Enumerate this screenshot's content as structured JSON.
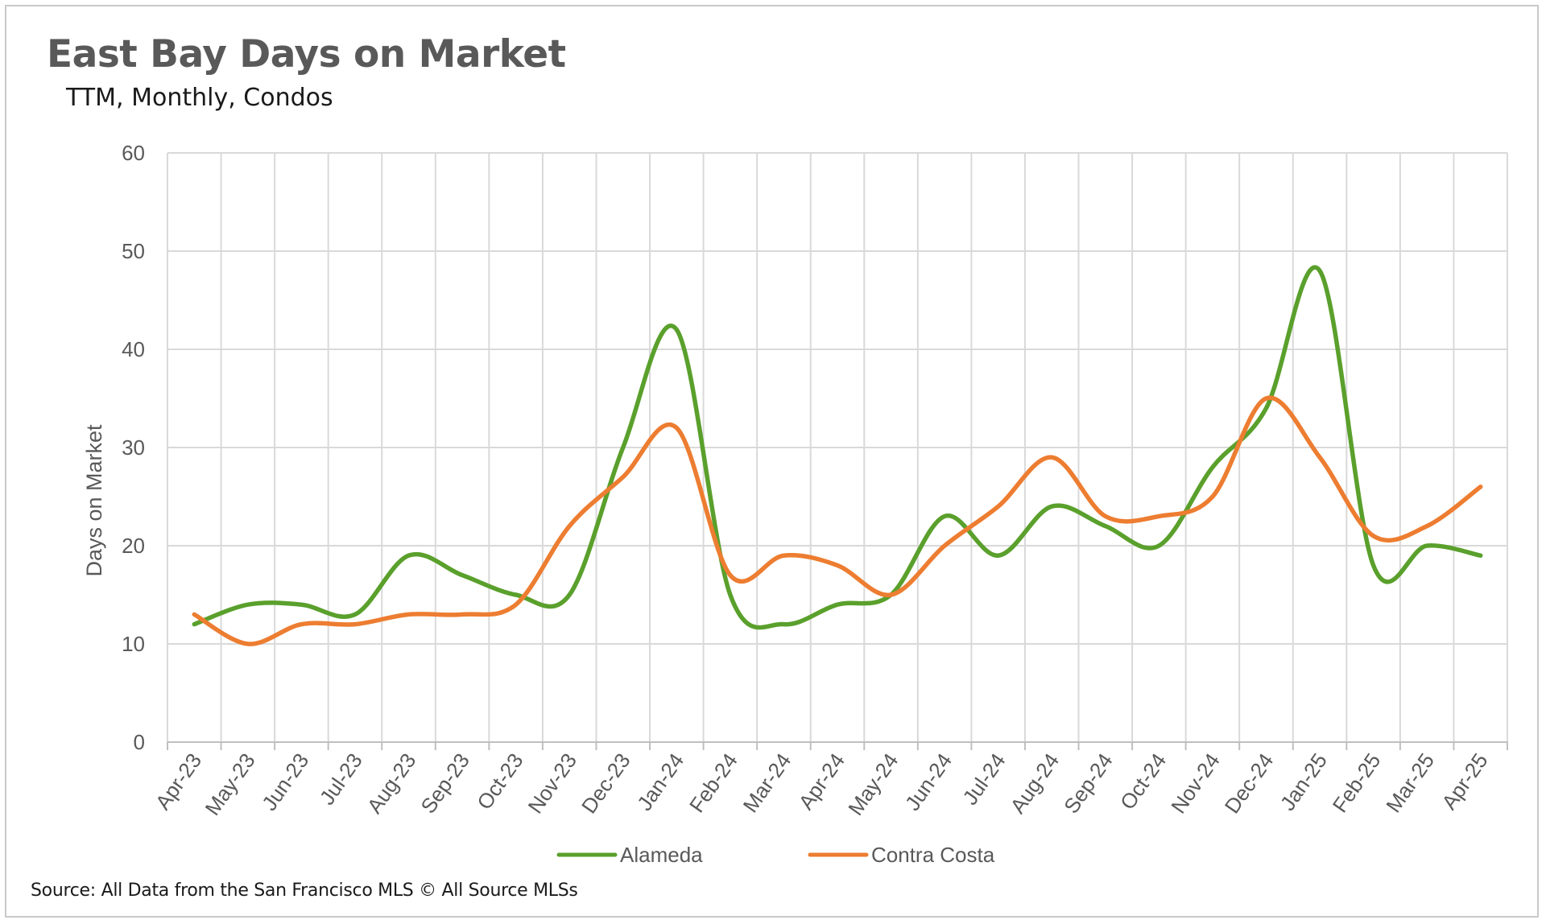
{
  "title": "East Bay Days on Market",
  "subtitle": "TTM, Monthly, Condos",
  "source": "Source: All Data from the San Francisco MLS © All Source MLSs",
  "chart_data": {
    "type": "line",
    "title": "East Bay Days on Market",
    "subtitle": "TTM, Monthly, Condos",
    "xlabel": "",
    "ylabel": "Days on Market",
    "ylim": [
      0,
      60
    ],
    "yticks": [
      0,
      10,
      20,
      30,
      40,
      50,
      60
    ],
    "grid": true,
    "legend_position": "bottom",
    "smooth": true,
    "categories": [
      "Apr-23",
      "May-23",
      "Jun-23",
      "Jul-23",
      "Aug-23",
      "Sep-23",
      "Oct-23",
      "Nov-23",
      "Dec-23",
      "Jan-24",
      "Feb-24",
      "Mar-24",
      "Apr-24",
      "May-24",
      "Jun-24",
      "Jul-24",
      "Aug-24",
      "Sep-24",
      "Oct-24",
      "Nov-24",
      "Dec-24",
      "Jan-25",
      "Feb-25",
      "Mar-25",
      "Apr-25"
    ],
    "series": [
      {
        "name": "Alameda",
        "color": "#5aa02c",
        "values": [
          12,
          14,
          14,
          13,
          19,
          17,
          15,
          15,
          30,
          42,
          15,
          12,
          14,
          15,
          23,
          19,
          24,
          22,
          20,
          28,
          34,
          48,
          18,
          20,
          19
        ]
      },
      {
        "name": "Contra Costa",
        "color": "#ed7d31",
        "values": [
          13,
          10,
          12,
          12,
          13,
          13,
          14,
          22,
          27,
          32,
          17,
          19,
          18,
          15,
          20,
          24,
          29,
          23,
          23,
          25,
          35,
          29,
          21,
          22,
          26
        ]
      }
    ]
  }
}
